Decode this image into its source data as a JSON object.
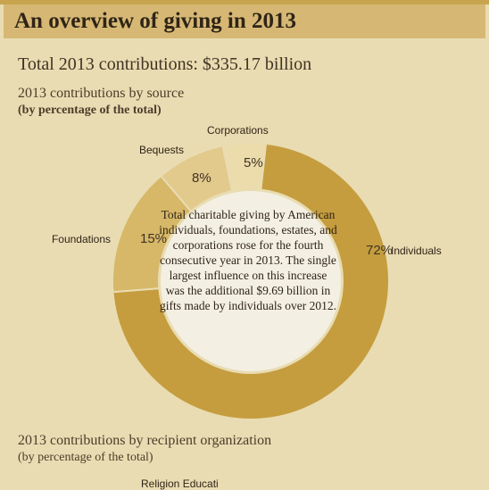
{
  "header": {
    "title": "An overview of giving in 2013"
  },
  "total_line": "Total 2013 contributions: $335.17 billion",
  "source_section": {
    "title": "2013 contributions by source",
    "subtitle": "(by percentage of the total)",
    "center_text": "Total charitable giving by American individuals, foundations, estates, and corporations rose for the fourth consecutive year in 2013. The single largest influence on this increase was the additional $9.69 billion in gifts made by individuals over 2012."
  },
  "recipient_section": {
    "title": "2013 contributions by recipient organization",
    "subtitle": "(by percentage of the total)",
    "clipped_labels": "Religion   Educati"
  },
  "colors": {
    "background": "#e9dcb2",
    "header_band": "#d6b874",
    "individuals": "#c59d3e",
    "foundations": "#d7b868",
    "bequests": "#e2c98c",
    "corporations": "#ecdcac",
    "center_disc": "#f3efe3"
  },
  "chart_data": {
    "type": "pie",
    "title": "2013 contributions by source",
    "subtitle": "(by percentage of the total)",
    "unit": "%",
    "slices": [
      {
        "label": "Individuals",
        "value": 72,
        "value_label": "72%",
        "color": "#c59d3e"
      },
      {
        "label": "Foundations",
        "value": 15,
        "value_label": "15%",
        "color": "#d7b868"
      },
      {
        "label": "Bequests",
        "value": 8,
        "value_label": "8%",
        "color": "#e2c98c"
      },
      {
        "label": "Corporations",
        "value": 5,
        "value_label": "5%",
        "color": "#ecdcac"
      }
    ]
  }
}
